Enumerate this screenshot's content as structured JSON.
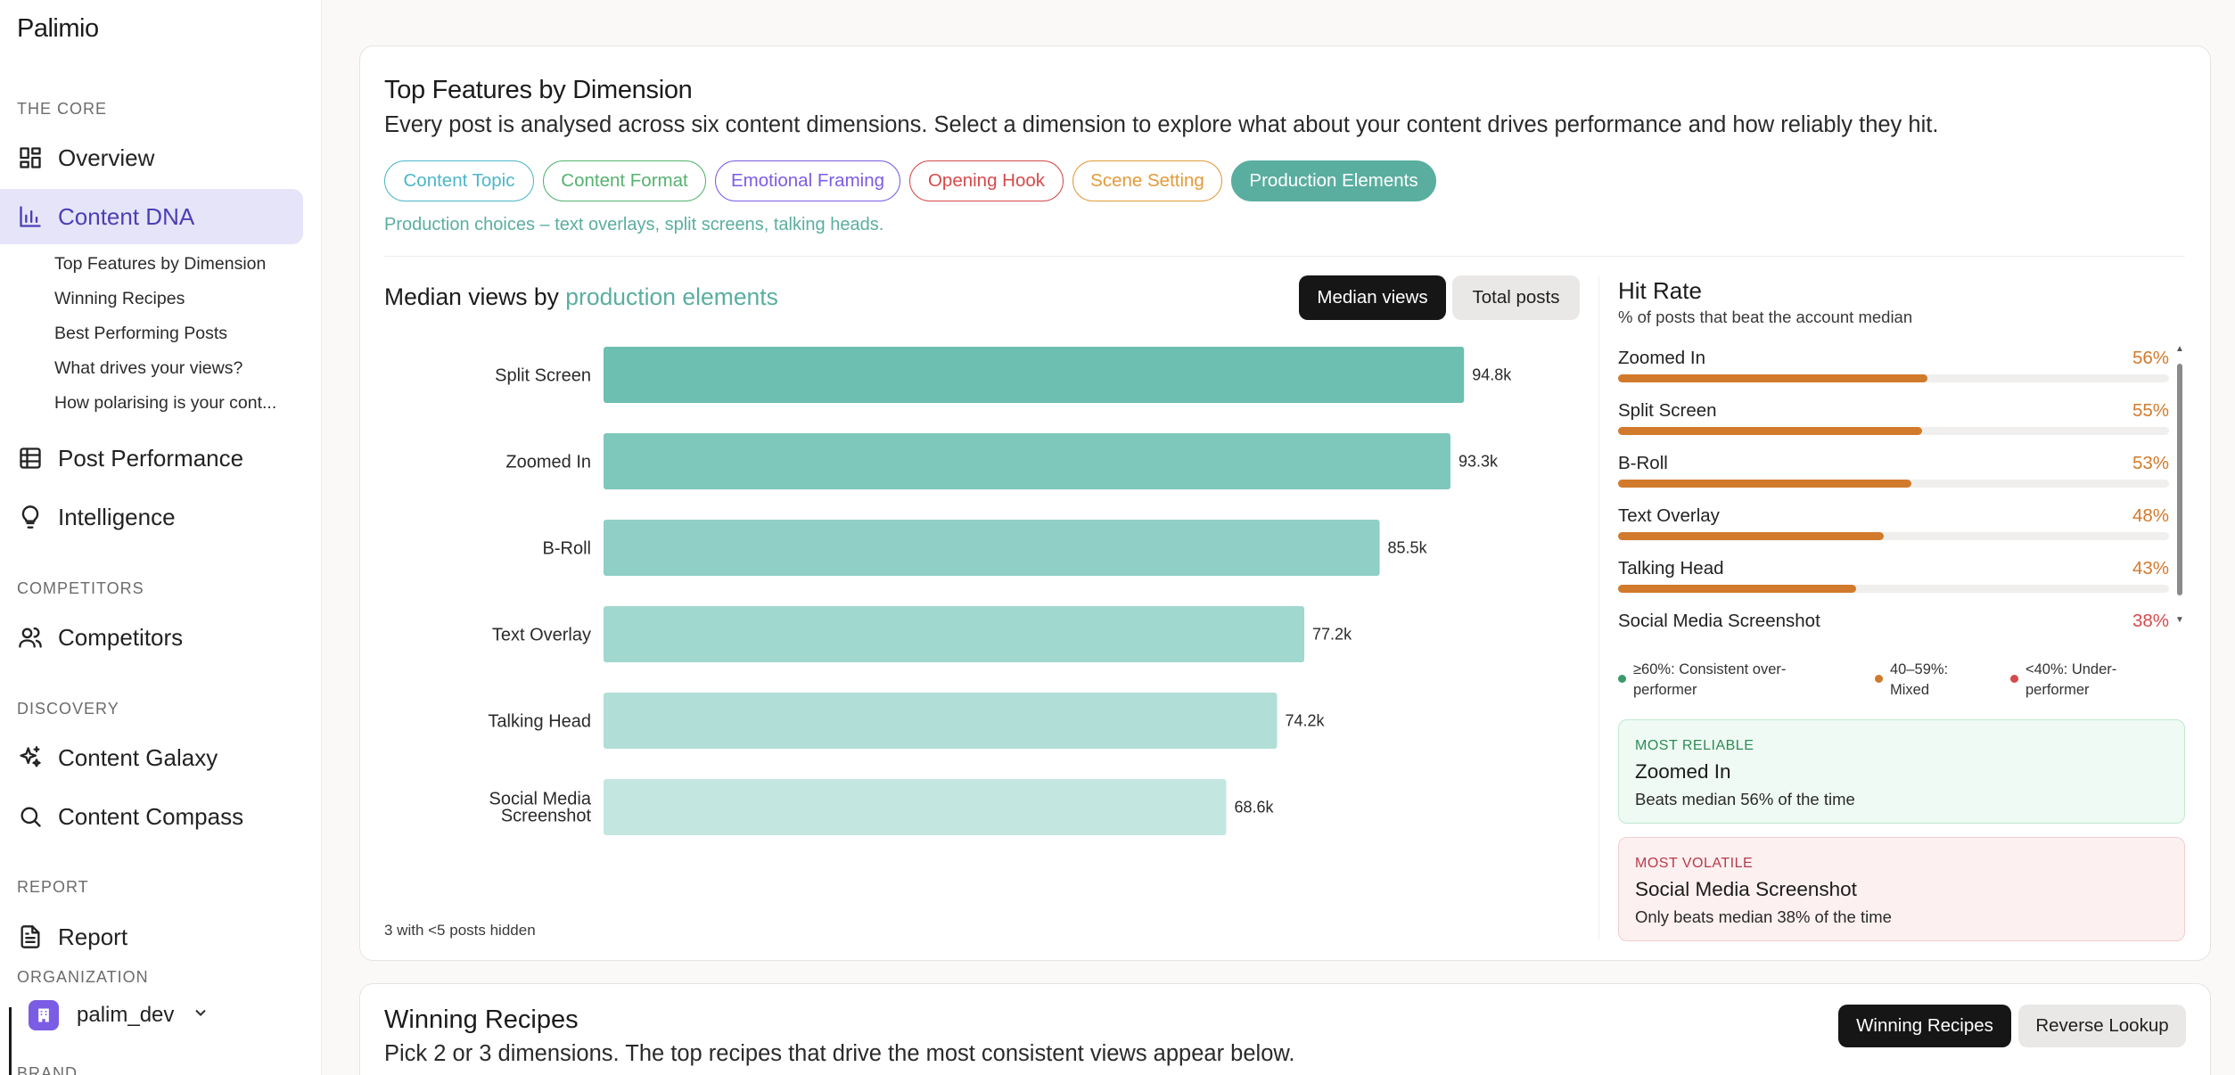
{
  "sidebar": {
    "brand": "Palimio",
    "sections": {
      "core": "THE CORE",
      "competitors": "COMPETITORS",
      "discovery": "DISCOVERY",
      "report": "REPORT",
      "organization": "ORGANIZATION",
      "brand_label": "BRAND"
    },
    "items": {
      "overview": "Overview",
      "content_dna": "Content DNA",
      "post_performance": "Post Performance",
      "intelligence": "Intelligence",
      "competitors": "Competitors",
      "content_galaxy": "Content Galaxy",
      "content_compass": "Content Compass",
      "report": "Report"
    },
    "sub_items": [
      "Top Features by Dimension",
      "Winning Recipes",
      "Best Performing Posts",
      "What drives your views?",
      "How polarising is your cont..."
    ],
    "org_name": "palim_dev"
  },
  "top_features": {
    "title": "Top Features by Dimension",
    "description": "Every post is analysed across six content dimensions. Select a dimension to explore what about your content drives performance and how reliably they hit.",
    "chips": [
      {
        "label": "Content Topic",
        "color": "#4db6c9",
        "active": false
      },
      {
        "label": "Content Format",
        "color": "#55b26f",
        "active": false
      },
      {
        "label": "Emotional Framing",
        "color": "#7b5ce5",
        "active": false
      },
      {
        "label": "Opening Hook",
        "color": "#d64a4a",
        "active": false
      },
      {
        "label": "Scene Setting",
        "color": "#e39a3b",
        "active": false
      },
      {
        "label": "Production Elements",
        "color": "#5aaea0",
        "active": true
      }
    ],
    "dimension_caption": "Production choices – text overlays, split screens, talking heads.",
    "chart_title_prefix": "Median views by",
    "chart_title_accent": "production elements",
    "toggle_median": "Median views",
    "toggle_total": "Total posts",
    "footnote": "3 with <5 posts hidden"
  },
  "chart_data": {
    "type": "bar",
    "orientation": "horizontal",
    "categories": [
      "Split Screen",
      "Zoomed In",
      "B-Roll",
      "Text Overlay",
      "Talking Head",
      "Social Media Screenshot"
    ],
    "values": [
      94800,
      93300,
      85500,
      77200,
      74200,
      68600
    ],
    "value_labels": [
      "94.8k",
      "93.3k",
      "85.5k",
      "77.2k",
      "74.2k",
      "68.6k"
    ],
    "colors": [
      "#6cbfb1",
      "#7ec7bb",
      "#8fcfc5",
      "#a0d7cf",
      "#b1dfd8",
      "#c3e6e1"
    ],
    "title": "Median views by production elements",
    "grid": false
  },
  "hit_rate": {
    "title": "Hit Rate",
    "subtitle": "% of posts that beat the account median",
    "rows": [
      {
        "name": "Zoomed In",
        "pct": 56,
        "label": "56%"
      },
      {
        "name": "Split Screen",
        "pct": 55,
        "label": "55%"
      },
      {
        "name": "B-Roll",
        "pct": 53,
        "label": "53%"
      },
      {
        "name": "Text Overlay",
        "pct": 48,
        "label": "48%"
      },
      {
        "name": "Talking Head",
        "pct": 43,
        "label": "43%"
      },
      {
        "name": "Social Media Screenshot",
        "pct": 38,
        "label": "38%"
      }
    ],
    "legend": [
      {
        "text": "≥60%: Consistent over-performer",
        "color": "#3a9a6a"
      },
      {
        "text": "40–59%: Mixed",
        "color": "#d27a2b"
      },
      {
        "text": "<40%: Under-performer",
        "color": "#d64a4a"
      }
    ],
    "most_reliable": {
      "tag": "MOST RELIABLE",
      "name": "Zoomed In",
      "note": "Beats median 56% of the time"
    },
    "most_volatile": {
      "tag": "MOST VOLATILE",
      "name": "Social Media Screenshot",
      "note": "Only beats median 38% of the time"
    }
  },
  "winning_recipes": {
    "title": "Winning Recipes",
    "description": "Pick 2 or 3 dimensions. The top recipes that drive the most consistent views appear below.",
    "toggle_on": "Winning Recipes",
    "toggle_off": "Reverse Lookup"
  }
}
